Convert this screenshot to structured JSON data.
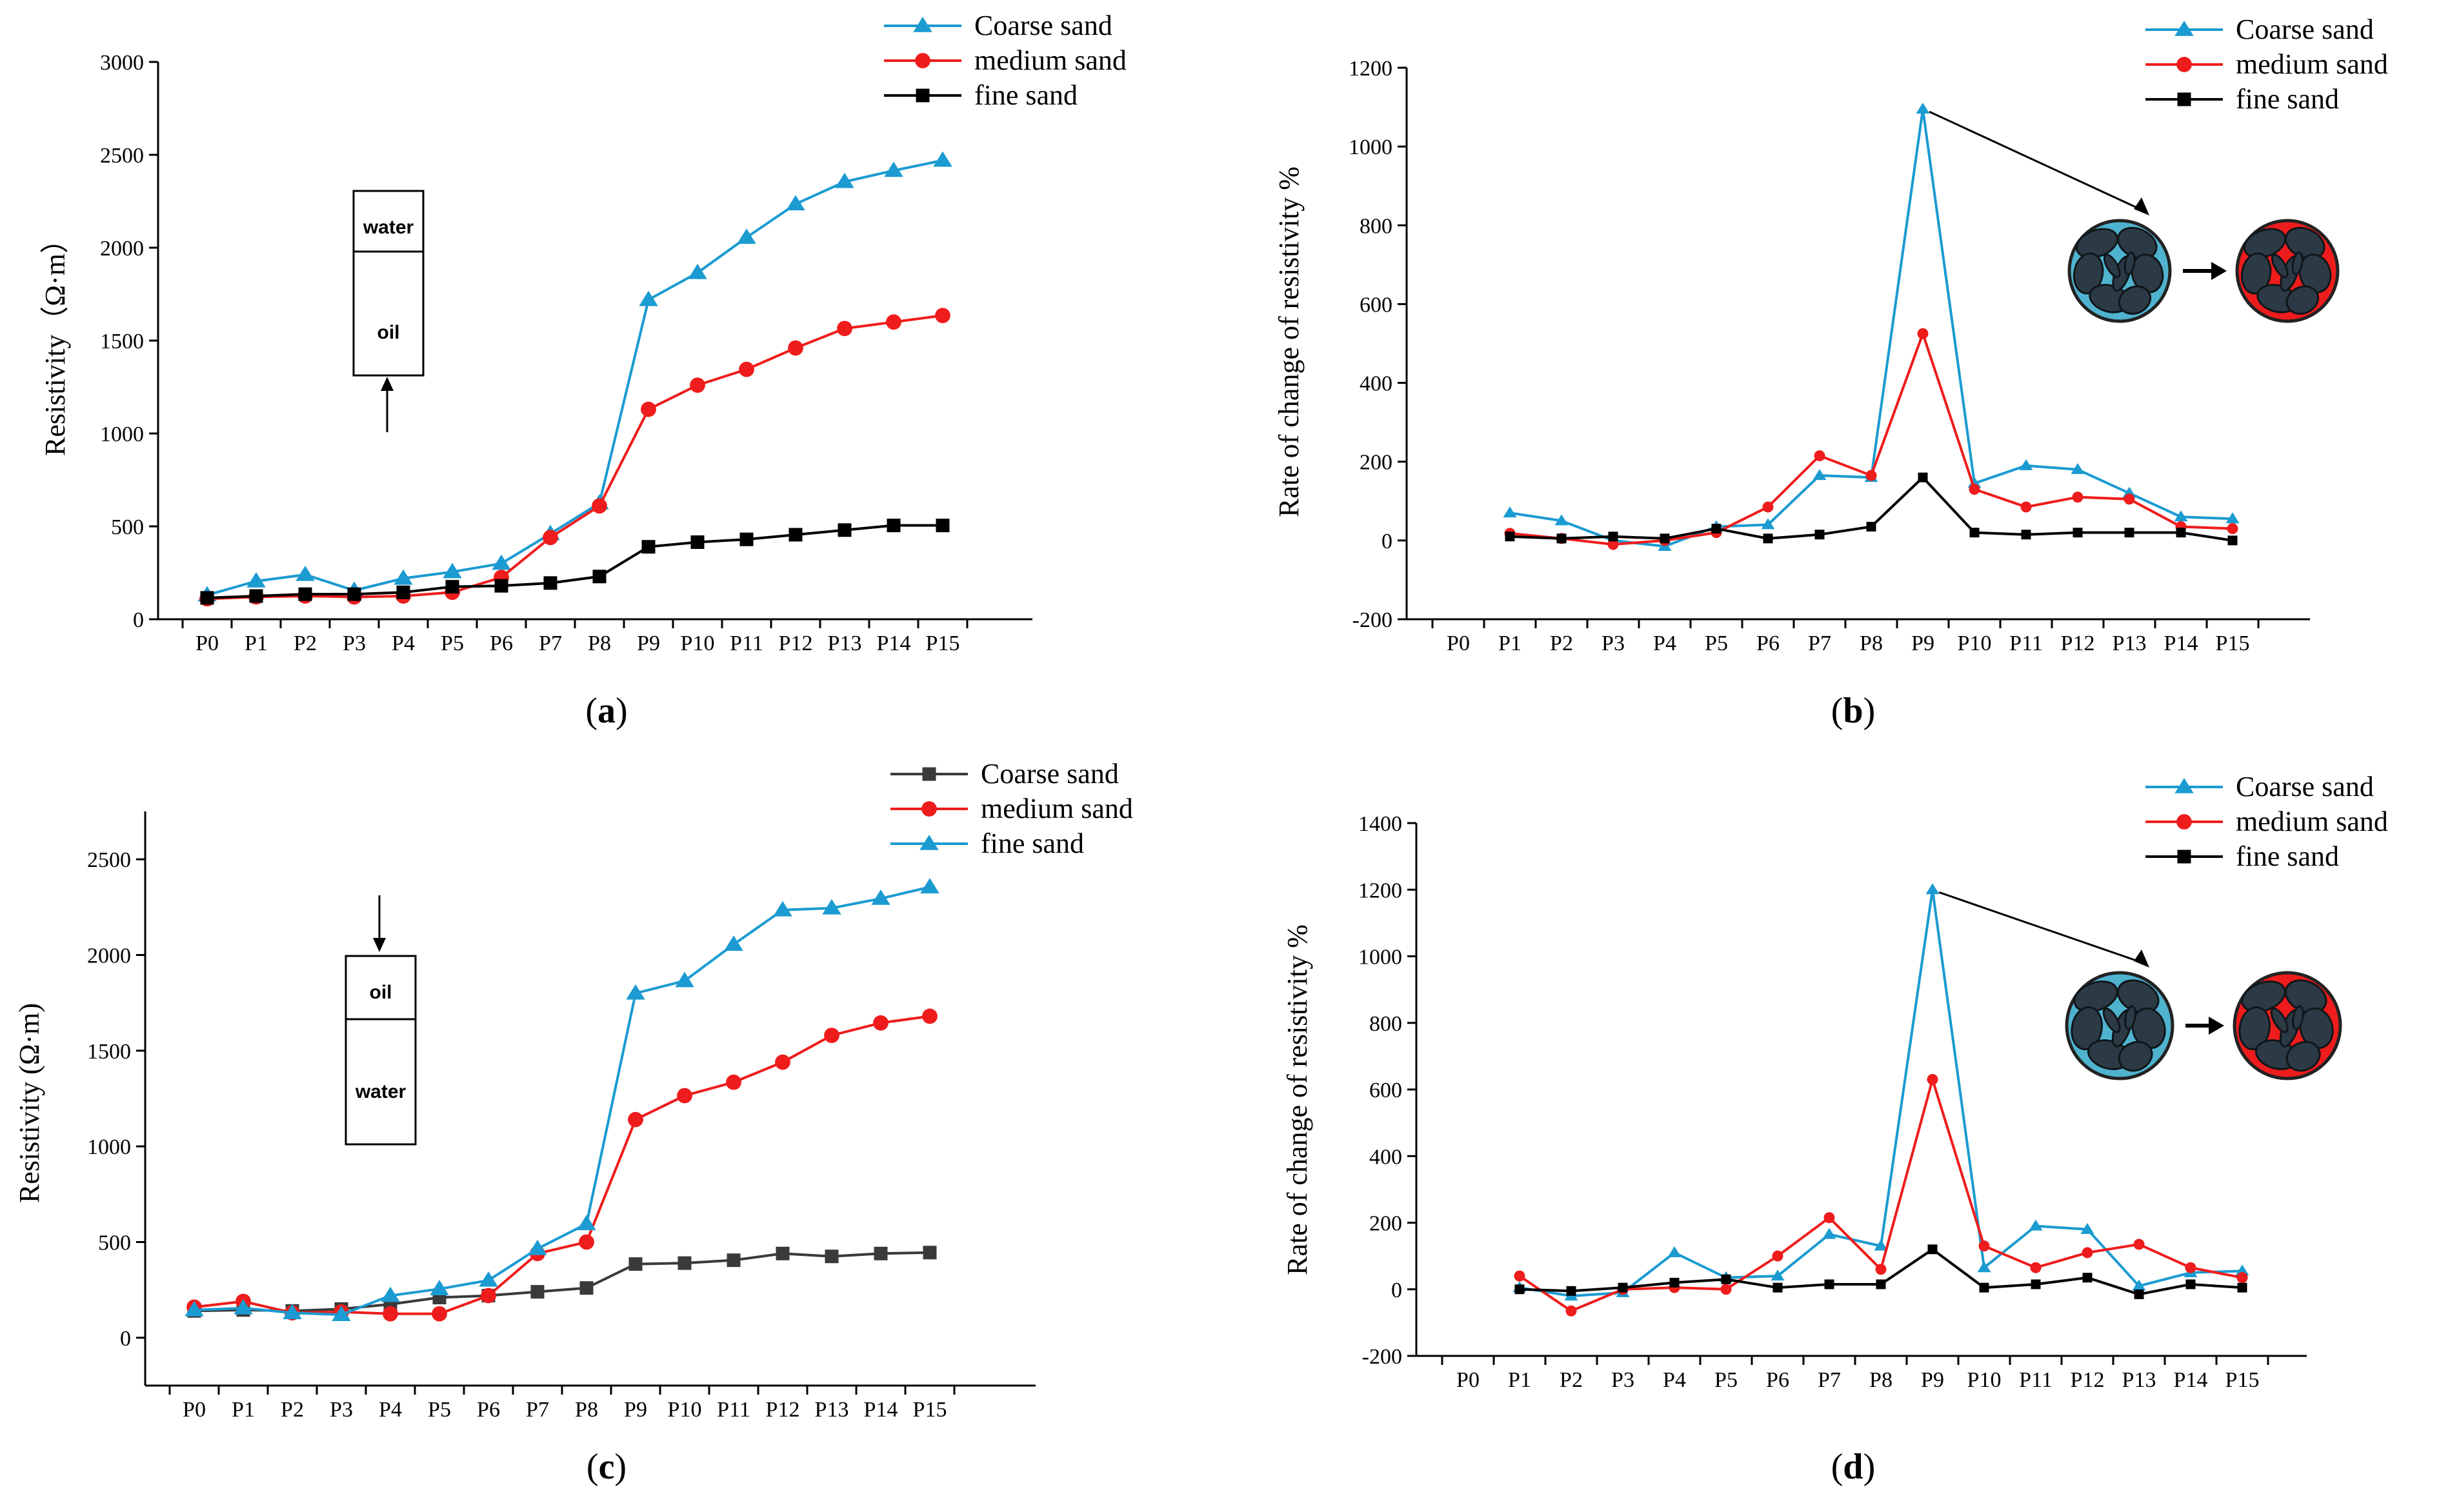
{
  "chart_data": [
    {
      "type": "line",
      "panel_label": "a",
      "ylabel": "Resistivity（Ω·m）",
      "xlabel": "",
      "categories": [
        "P0",
        "P1",
        "P2",
        "P3",
        "P4",
        "P5",
        "P6",
        "P7",
        "P8",
        "P9",
        "P10",
        "P11",
        "P12",
        "P13",
        "P14",
        "P15"
      ],
      "ylim": [
        0,
        3000
      ],
      "yticks": [
        0,
        500,
        1000,
        1500,
        2000,
        2500,
        3000
      ],
      "legend_position": "top-right",
      "series": [
        {
          "name": "Coarse sand",
          "color": "#1b9bd1",
          "marker": "triangle",
          "values": [
            130,
            205,
            240,
            155,
            220,
            255,
            300,
            460,
            625,
            1720,
            1865,
            2055,
            2235,
            2355,
            2415,
            2470
          ]
        },
        {
          "name": "medium sand",
          "color": "#ee1c1c",
          "marker": "circle",
          "values": [
            110,
            120,
            125,
            120,
            125,
            145,
            225,
            440,
            610,
            1130,
            1260,
            1345,
            1460,
            1565,
            1600,
            1635
          ]
        },
        {
          "name": "fine sand",
          "color": "#000000",
          "marker": "square",
          "values": [
            115,
            125,
            135,
            135,
            145,
            175,
            180,
            195,
            230,
            390,
            415,
            430,
            455,
            480,
            505,
            505
          ]
        }
      ],
      "inset_box": {
        "top_label": "water",
        "bottom_label": "oil",
        "arrow": "up"
      }
    },
    {
      "type": "line",
      "panel_label": "b",
      "ylabel": "Rate of change of resistivity %",
      "xlabel": "",
      "categories": [
        "P0",
        "P1",
        "P2",
        "P3",
        "P4",
        "P5",
        "P6",
        "P7",
        "P8",
        "P9",
        "P10",
        "P11",
        "P12",
        "P13",
        "P14",
        "P15"
      ],
      "ylim": [
        -200,
        1200
      ],
      "yticks": [
        -200,
        0,
        200,
        400,
        600,
        800,
        1000,
        1200
      ],
      "legend_position": "top-right",
      "series": [
        {
          "name": "Coarse sand",
          "color": "#1b9bd1",
          "marker": "triangle",
          "values": [
            null,
            70,
            50,
            0,
            -15,
            35,
            40,
            165,
            160,
            1095,
            145,
            190,
            180,
            120,
            60,
            55
          ]
        },
        {
          "name": "medium sand",
          "color": "#ee1c1c",
          "marker": "circle",
          "values": [
            null,
            18,
            5,
            -10,
            0,
            20,
            85,
            215,
            165,
            525,
            130,
            85,
            110,
            105,
            35,
            30
          ]
        },
        {
          "name": "fine sand",
          "color": "#000000",
          "marker": "square",
          "values": [
            null,
            10,
            5,
            10,
            5,
            30,
            5,
            15,
            35,
            160,
            20,
            15,
            20,
            20,
            20,
            0
          ]
        }
      ],
      "annotation": "arrow from P9 peak to pore-scale circle diagram (water-saturated to oil-invaded)"
    },
    {
      "type": "line",
      "panel_label": "c",
      "ylabel": "Resistivity (Ω·m)",
      "xlabel": "",
      "categories": [
        "P0",
        "P1",
        "P2",
        "P3",
        "P4",
        "P5",
        "P6",
        "P7",
        "P8",
        "P9",
        "P10",
        "P11",
        "P12",
        "P13",
        "P14",
        "P15"
      ],
      "ylim": [
        -250,
        2750
      ],
      "yticks": [
        0,
        500,
        1000,
        1500,
        2000,
        2500
      ],
      "legend_position": "top-right",
      "series": [
        {
          "name": "Coarse sand",
          "color": "#3a3a3a",
          "marker": "square",
          "values": [
            140,
            145,
            140,
            150,
            175,
            210,
            220,
            240,
            260,
            385,
            390,
            405,
            440,
            425,
            440,
            445
          ]
        },
        {
          "name": "medium sand",
          "color": "#ee1c1c",
          "marker": "circle",
          "values": [
            160,
            190,
            130,
            135,
            125,
            125,
            220,
            440,
            500,
            1140,
            1265,
            1335,
            1440,
            1580,
            1645,
            1680
          ]
        },
        {
          "name": "fine sand",
          "color": "#1b9bd1",
          "marker": "triangle",
          "values": [
            145,
            155,
            130,
            120,
            220,
            255,
            300,
            465,
            595,
            1800,
            1865,
            2055,
            2235,
            2245,
            2295,
            2355
          ]
        }
      ],
      "inset_box": {
        "top_label": "oil",
        "bottom_label": "water",
        "arrow": "down"
      }
    },
    {
      "type": "line",
      "panel_label": "d",
      "ylabel": "Rate of change of resistivity %",
      "xlabel": "",
      "categories": [
        "P0",
        "P1",
        "P2",
        "P3",
        "P4",
        "P5",
        "P6",
        "P7",
        "P8",
        "P9",
        "P10",
        "P11",
        "P12",
        "P13",
        "P14",
        "P15"
      ],
      "ylim": [
        -200,
        1400
      ],
      "yticks": [
        -200,
        0,
        200,
        400,
        600,
        800,
        1000,
        1200,
        1400
      ],
      "legend_position": "top-right",
      "series": [
        {
          "name": "Coarse sand",
          "color": "#1b9bd1",
          "marker": "triangle",
          "values": [
            null,
            5,
            -20,
            -10,
            110,
            35,
            40,
            165,
            130,
            1200,
            65,
            190,
            180,
            10,
            50,
            55
          ]
        },
        {
          "name": "medium sand",
          "color": "#ee1c1c",
          "marker": "circle",
          "values": [
            null,
            40,
            -65,
            0,
            5,
            0,
            100,
            215,
            60,
            630,
            130,
            65,
            110,
            135,
            65,
            35
          ]
        },
        {
          "name": "fine sand",
          "color": "#000000",
          "marker": "square",
          "values": [
            null,
            0,
            -5,
            5,
            20,
            30,
            5,
            15,
            15,
            120,
            5,
            15,
            35,
            -15,
            15,
            5
          ]
        }
      ],
      "annotation": "arrow from P9 peak to pore-scale circle diagram (water-saturated to oil-invaded)"
    }
  ]
}
